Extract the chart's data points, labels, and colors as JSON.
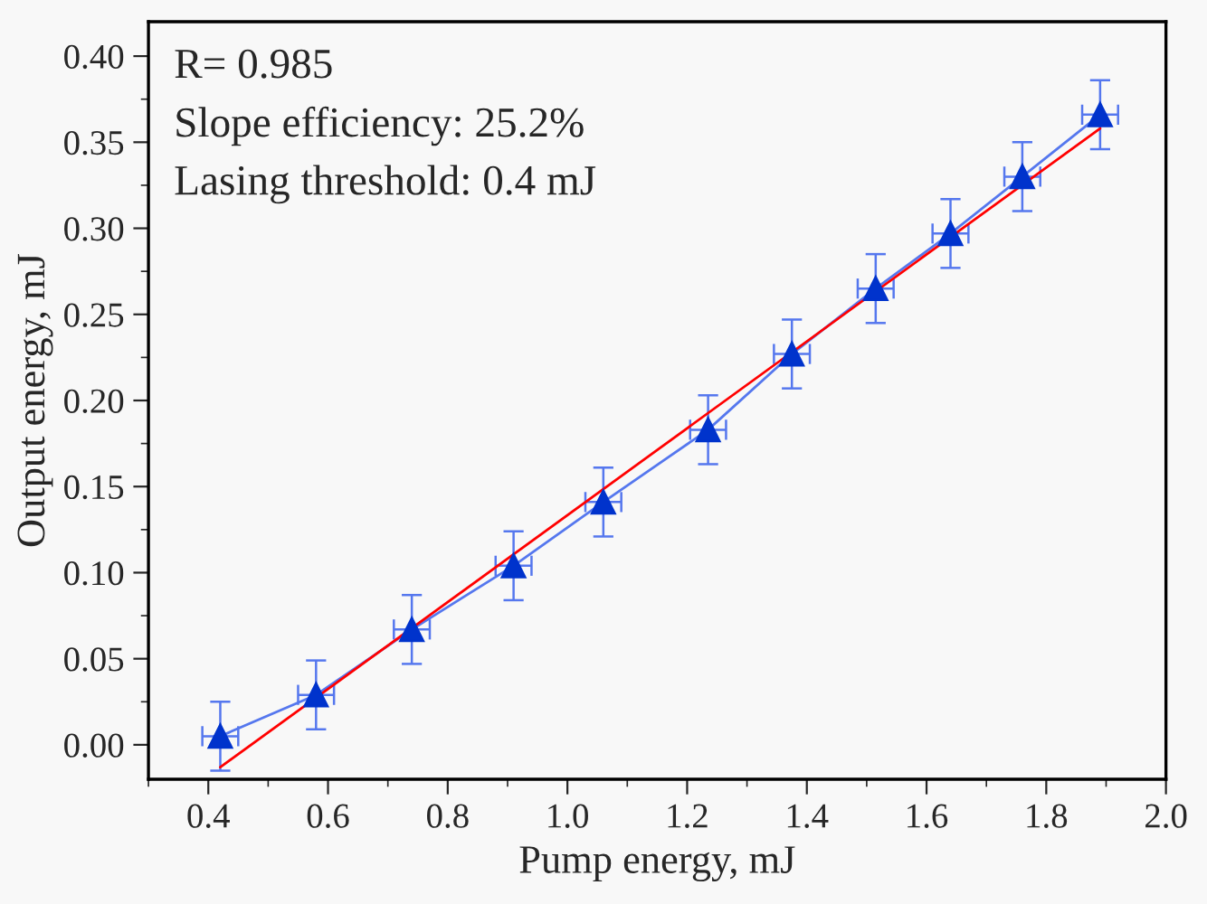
{
  "chart_data": {
    "type": "line",
    "xlabel": "Pump energy, mJ",
    "ylabel": "Output energy, mJ",
    "xlim": [
      0.3,
      2.0
    ],
    "ylim": [
      -0.02,
      0.42
    ],
    "xticks": [
      0.4,
      0.6,
      0.8,
      {
        "value": 1.0,
        "label": "1.0"
      },
      1.2,
      1.4,
      1.6,
      1.8,
      {
        "value": 2.0,
        "label": "2.0"
      }
    ],
    "yticks": [
      {
        "value": 0.0,
        "label": "0.00"
      },
      {
        "value": 0.05,
        "label": "0.05"
      },
      {
        "value": 0.1,
        "label": "0.10"
      },
      {
        "value": 0.15,
        "label": "0.15"
      },
      {
        "value": 0.2,
        "label": "0.20"
      },
      {
        "value": 0.25,
        "label": "0.25"
      },
      {
        "value": 0.3,
        "label": "0.30"
      },
      {
        "value": 0.35,
        "label": "0.35"
      },
      {
        "value": 0.4,
        "label": "0.40"
      }
    ],
    "grid": false,
    "legend": false,
    "series": [
      {
        "color": "#0033cc",
        "marker": "triangle",
        "line_style": "solid",
        "x": [
          0.42,
          0.58,
          0.74,
          0.91,
          1.06,
          1.235,
          1.375,
          1.515,
          1.64,
          1.76,
          1.89
        ],
        "values": [
          0.005,
          0.029,
          0.067,
          0.104,
          0.141,
          0.183,
          0.227,
          0.265,
          0.297,
          0.33,
          0.366
        ],
        "errors": [
          0.02,
          0.02,
          0.02,
          0.02,
          0.02,
          0.02,
          0.02,
          0.02,
          0.02,
          0.02,
          0.02
        ],
        "xerrors": [
          0.03,
          0.03,
          0.03,
          0.03,
          0.03,
          0.03,
          0.03,
          0.03,
          0.03,
          0.03,
          0.03
        ]
      },
      {
        "color": "#ff0000",
        "marker": "none",
        "line_style": "solid",
        "x": [
          0.42,
          1.89
        ],
        "values": [
          -0.013,
          0.358
        ]
      }
    ],
    "annotations": [
      "R= 0.985",
      "Slope efficiency: 25.2%",
      "Lasing threshold: 0.4 mJ"
    ]
  }
}
